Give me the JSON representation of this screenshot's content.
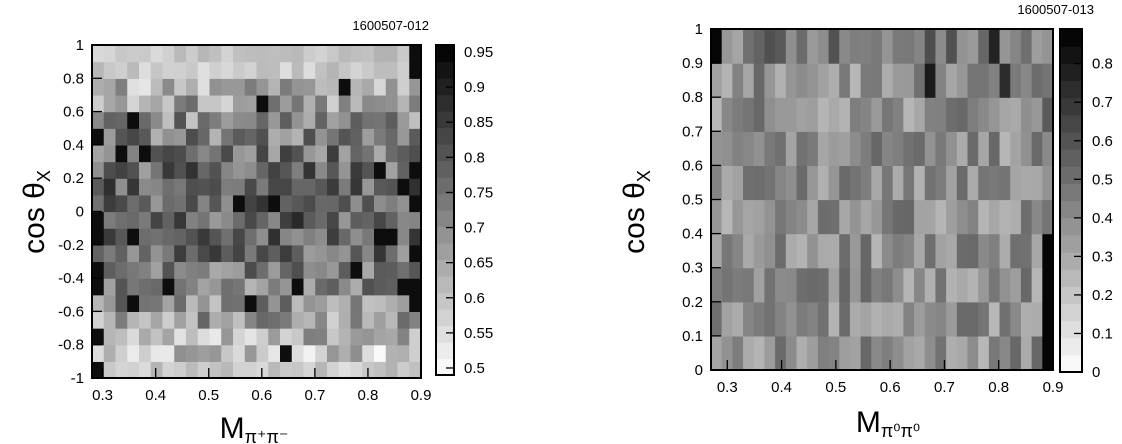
{
  "chart_data": [
    {
      "type": "heatmap",
      "figure_id": "1600507-012",
      "xlabel_main": "M",
      "xlabel_sub": "π⁺π⁻",
      "ylabel_main": "cos θ",
      "ylabel_sub": "X",
      "xlim": [
        0.28,
        0.9
      ],
      "ylim": [
        -1,
        1
      ],
      "x_bins": 28,
      "y_bins": 20,
      "x_ticks": [
        "0.3",
        "0.4",
        "0.5",
        "0.6",
        "0.7",
        "0.8",
        "0.9"
      ],
      "y_ticks": [
        "-1",
        "-0.8",
        "-0.6",
        "-0.4",
        "-0.2",
        "0",
        "0.2",
        "0.4",
        "0.6",
        "0.8",
        "1"
      ],
      "zlim": [
        0.49,
        0.96
      ],
      "z_ticks": [
        "0.5",
        "0.55",
        "0.6",
        "0.65",
        "0.7",
        "0.75",
        "0.8",
        "0.85",
        "0.9",
        "0.95"
      ],
      "palette": "grayscale",
      "grid": false,
      "colorbar": "right"
    },
    {
      "type": "heatmap",
      "figure_id": "1600507-013",
      "xlabel_main": "M",
      "xlabel_sub": "π⁰π⁰",
      "ylabel_main": "cos θ",
      "ylabel_sub": "X",
      "xlim": [
        0.27,
        0.9
      ],
      "ylim": [
        0,
        1
      ],
      "x_bins": 32,
      "y_bins": 10,
      "x_ticks": [
        "0.3",
        "0.4",
        "0.5",
        "0.6",
        "0.7",
        "0.8",
        "0.9"
      ],
      "y_ticks": [
        "0",
        "0.1",
        "0.2",
        "0.3",
        "0.4",
        "0.5",
        "0.6",
        "0.7",
        "0.8",
        "0.9",
        "1"
      ],
      "zlim": [
        0,
        0.89
      ],
      "z_ticks": [
        "0",
        "0.1",
        "0.2",
        "0.3",
        "0.4",
        "0.5",
        "0.6",
        "0.7",
        "0.8"
      ],
      "palette": "grayscale",
      "grid": false,
      "colorbar": "right"
    }
  ]
}
